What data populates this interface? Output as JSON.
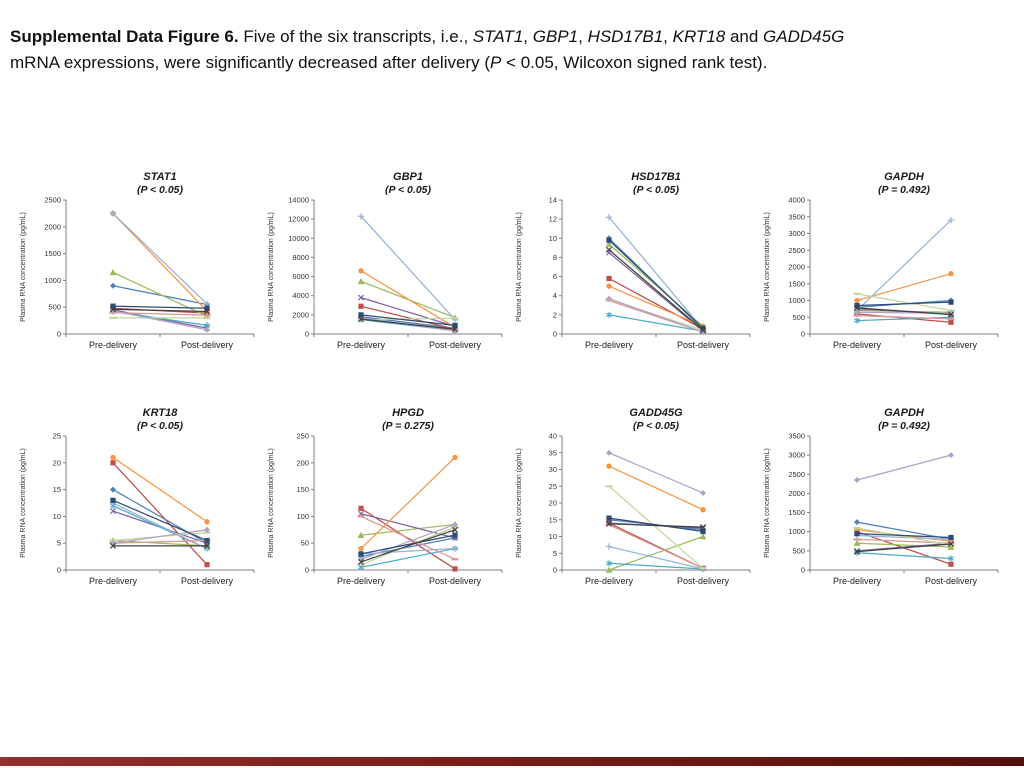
{
  "caption": {
    "segments": [
      {
        "text": "Supplemental Data Figure 6. ",
        "bold": true
      },
      {
        "text": "Five of the six transcripts, i.e., "
      },
      {
        "text": "STAT1",
        "italic": true
      },
      {
        "text": ", "
      },
      {
        "text": "GBP1",
        "italic": true
      },
      {
        "text": ", "
      },
      {
        "text": "HSD17B1",
        "italic": true
      },
      {
        "text": ", "
      },
      {
        "text": "KRT18",
        "italic": true
      },
      {
        "text": " and "
      },
      {
        "text": "GADD45G",
        "italic": true
      },
      {
        "text": "mRNA expressions, were significantly decreased after delivery ("
      },
      {
        "text": "P",
        "italic": true
      },
      {
        "text": " < 0.05, Wilcoxon signed rank test)."
      }
    ]
  },
  "colors": {
    "footer_bar": "#7a1f16"
  },
  "chart_data": [
    {
      "type": "line",
      "title": "STAT1",
      "subtitle": "(P < 0.05)",
      "ylabel": "Plasma RNA concentration (pg/mL)",
      "categories": [
        "Pre-delivery",
        "Post-delivery"
      ],
      "ylim": [
        0,
        2500
      ],
      "ytick_step": 500,
      "grid": false,
      "legend": "none",
      "series": [
        {
          "color": "#4F81BD",
          "marker": "diamond",
          "values": [
            900,
            550
          ]
        },
        {
          "color": "#C0504D",
          "marker": "square",
          "values": [
            480,
            390
          ]
        },
        {
          "color": "#9BBB59",
          "marker": "triangle",
          "values": [
            1150,
            330
          ]
        },
        {
          "color": "#8064A2",
          "marker": "x",
          "values": [
            450,
            110
          ]
        },
        {
          "color": "#4BACC6",
          "marker": "asterisk",
          "values": [
            420,
            160
          ]
        },
        {
          "color": "#F79646",
          "marker": "circle",
          "values": [
            2250,
            430
          ]
        },
        {
          "color": "#95B3D7",
          "marker": "plus",
          "values": [
            2250,
            560
          ]
        },
        {
          "color": "#D99694",
          "marker": "dash",
          "values": [
            400,
            350
          ]
        },
        {
          "color": "#C3D69B",
          "marker": "dash",
          "values": [
            300,
            300
          ]
        },
        {
          "color": "#B2A1C7",
          "marker": "diamond",
          "values": [
            430,
            80
          ]
        },
        {
          "color": "#2C4D75",
          "marker": "square",
          "values": [
            520,
            480
          ]
        },
        {
          "color": "#404040",
          "marker": "x",
          "values": [
            460,
            420
          ]
        }
      ]
    },
    {
      "type": "line",
      "title": "GBP1",
      "subtitle": "(P < 0.05)",
      "ylabel": "Plasma RNA concentration (pg/mL)",
      "categories": [
        "Pre-delivery",
        "Post-delivery"
      ],
      "ylim": [
        0,
        14000
      ],
      "ytick_step": 2000,
      "grid": false,
      "legend": "none",
      "series": [
        {
          "color": "#4F81BD",
          "marker": "diamond",
          "values": [
            1800,
            600
          ]
        },
        {
          "color": "#C0504D",
          "marker": "square",
          "values": [
            2900,
            500
          ]
        },
        {
          "color": "#9BBB59",
          "marker": "triangle",
          "values": [
            5500,
            1700
          ]
        },
        {
          "color": "#8064A2",
          "marker": "x",
          "values": [
            3800,
            800
          ]
        },
        {
          "color": "#4BACC6",
          "marker": "asterisk",
          "values": [
            1500,
            350
          ]
        },
        {
          "color": "#F79646",
          "marker": "circle",
          "values": [
            6600,
            700
          ]
        },
        {
          "color": "#95B3D7",
          "marker": "plus",
          "values": [
            12300,
            1500
          ]
        },
        {
          "color": "#D99694",
          "marker": "dash",
          "values": [
            1600,
            450
          ]
        },
        {
          "color": "#C3D69B",
          "marker": "dash",
          "values": [
            1500,
            1650
          ]
        },
        {
          "color": "#B2A1C7",
          "marker": "diamond",
          "values": [
            1700,
            300
          ]
        },
        {
          "color": "#2C4D75",
          "marker": "square",
          "values": [
            2000,
            900
          ]
        },
        {
          "color": "#404040",
          "marker": "x",
          "values": [
            1550,
            500
          ]
        }
      ]
    },
    {
      "type": "line",
      "title": "HSD17B1",
      "subtitle": "(P < 0.05)",
      "ylabel": "Plasma RNA concentration (pg/mL)",
      "categories": [
        "Pre-delivery",
        "Post-delivery"
      ],
      "ylim": [
        0,
        14
      ],
      "ytick_step": 2,
      "grid": false,
      "legend": "none",
      "series": [
        {
          "color": "#4F81BD",
          "marker": "diamond",
          "values": [
            10,
            0.5
          ]
        },
        {
          "color": "#C0504D",
          "marker": "square",
          "values": [
            5.8,
            0.5
          ]
        },
        {
          "color": "#9BBB59",
          "marker": "triangle",
          "values": [
            9.4,
            0.8
          ]
        },
        {
          "color": "#8064A2",
          "marker": "x",
          "values": [
            8.5,
            0.3
          ]
        },
        {
          "color": "#4BACC6",
          "marker": "asterisk",
          "values": [
            2,
            0.3
          ]
        },
        {
          "color": "#F79646",
          "marker": "circle",
          "values": [
            5,
            0.8
          ]
        },
        {
          "color": "#95B3D7",
          "marker": "plus",
          "values": [
            12.2,
            0.5
          ]
        },
        {
          "color": "#D99694",
          "marker": "dash",
          "values": [
            3.5,
            0.2
          ]
        },
        {
          "color": "#C3D69B",
          "marker": "dash",
          "values": [
            3.6,
            0.4
          ]
        },
        {
          "color": "#B2A1C7",
          "marker": "diamond",
          "values": [
            3.7,
            0.2
          ]
        },
        {
          "color": "#2C4D75",
          "marker": "square",
          "values": [
            9.8,
            0.6
          ]
        },
        {
          "color": "#404040",
          "marker": "x",
          "values": [
            8.8,
            0.4
          ]
        }
      ]
    },
    {
      "type": "line",
      "title": "GAPDH",
      "subtitle": "(P = 0.492)",
      "ylabel": "Plasma RNA concentration (pg/mL)",
      "categories": [
        "Pre-delivery",
        "Post-delivery"
      ],
      "ylim": [
        0,
        4000
      ],
      "ytick_step": 500,
      "grid": false,
      "legend": "none",
      "series": [
        {
          "color": "#4F81BD",
          "marker": "diamond",
          "values": [
            800,
            1000
          ]
        },
        {
          "color": "#C0504D",
          "marker": "square",
          "values": [
            600,
            350
          ]
        },
        {
          "color": "#9BBB59",
          "marker": "triangle",
          "values": [
            700,
            650
          ]
        },
        {
          "color": "#8064A2",
          "marker": "x",
          "values": [
            750,
            600
          ]
        },
        {
          "color": "#4BACC6",
          "marker": "asterisk",
          "values": [
            400,
            500
          ]
        },
        {
          "color": "#F79646",
          "marker": "circle",
          "values": [
            1000,
            1800
          ]
        },
        {
          "color": "#95B3D7",
          "marker": "plus",
          "values": [
            700,
            3400
          ]
        },
        {
          "color": "#D99694",
          "marker": "dash",
          "values": [
            550,
            450
          ]
        },
        {
          "color": "#C3D69B",
          "marker": "dash",
          "values": [
            1200,
            700
          ]
        },
        {
          "color": "#B2A1C7",
          "marker": "diamond",
          "values": [
            650,
            620
          ]
        },
        {
          "color": "#2C4D75",
          "marker": "square",
          "values": [
            850,
            950
          ]
        },
        {
          "color": "#404040",
          "marker": "x",
          "values": [
            780,
            580
          ]
        }
      ]
    },
    {
      "type": "line",
      "title": "KRT18",
      "subtitle": "(P < 0.05)",
      "ylabel": "Plasma RNA concentration (pg/mL)",
      "categories": [
        "Pre-delivery",
        "Post-delivery"
      ],
      "ylim": [
        0,
        25
      ],
      "ytick_step": 5,
      "grid": false,
      "legend": "none",
      "series": [
        {
          "color": "#4F81BD",
          "marker": "diamond",
          "values": [
            15,
            5
          ]
        },
        {
          "color": "#C0504D",
          "marker": "square",
          "values": [
            20,
            1
          ]
        },
        {
          "color": "#9BBB59",
          "marker": "triangle",
          "values": [
            5.5,
            4.5
          ]
        },
        {
          "color": "#8064A2",
          "marker": "x",
          "values": [
            11,
            5
          ]
        },
        {
          "color": "#4BACC6",
          "marker": "asterisk",
          "values": [
            12,
            4
          ]
        },
        {
          "color": "#F79646",
          "marker": "circle",
          "values": [
            21,
            9
          ]
        },
        {
          "color": "#95B3D7",
          "marker": "plus",
          "values": [
            12.5,
            4
          ]
        },
        {
          "color": "#D99694",
          "marker": "dash",
          "values": [
            5,
            5.5
          ]
        },
        {
          "color": "#C3D69B",
          "marker": "dash",
          "values": [
            5.5,
            7
          ]
        },
        {
          "color": "#B2A1C7",
          "marker": "diamond",
          "values": [
            5,
            7.5
          ]
        },
        {
          "color": "#2C4D75",
          "marker": "square",
          "values": [
            13,
            5.5
          ]
        },
        {
          "color": "#404040",
          "marker": "x",
          "values": [
            4.5,
            4.5
          ]
        }
      ]
    },
    {
      "type": "line",
      "title": "HPGD",
      "subtitle": "(P = 0.275)",
      "ylabel": "Plasma RNA concentration (pg/mL)",
      "categories": [
        "Pre-delivery",
        "Post-delivery"
      ],
      "ylim": [
        0,
        250
      ],
      "ytick_step": 50,
      "grid": false,
      "legend": "none",
      "series": [
        {
          "color": "#4F81BD",
          "marker": "diamond",
          "values": [
            25,
            60
          ]
        },
        {
          "color": "#C0504D",
          "marker": "square",
          "values": [
            115,
            2
          ]
        },
        {
          "color": "#9BBB59",
          "marker": "triangle",
          "values": [
            65,
            85
          ]
        },
        {
          "color": "#8064A2",
          "marker": "x",
          "values": [
            105,
            60
          ]
        },
        {
          "color": "#4BACC6",
          "marker": "asterisk",
          "values": [
            5,
            40
          ]
        },
        {
          "color": "#F79646",
          "marker": "circle",
          "values": [
            40,
            210
          ]
        },
        {
          "color": "#95B3D7",
          "marker": "plus",
          "values": [
            30,
            40
          ]
        },
        {
          "color": "#D99694",
          "marker": "dash",
          "values": [
            100,
            20
          ]
        },
        {
          "color": "#C3D69B",
          "marker": "dash",
          "values": [
            10,
            80
          ]
        },
        {
          "color": "#B2A1C7",
          "marker": "diamond",
          "values": [
            20,
            85
          ]
        },
        {
          "color": "#2C4D75",
          "marker": "square",
          "values": [
            30,
            65
          ]
        },
        {
          "color": "#404040",
          "marker": "x",
          "values": [
            15,
            75
          ]
        }
      ]
    },
    {
      "type": "line",
      "title": "GADD45G",
      "subtitle": "(P < 0.05)",
      "ylabel": "Plasma RNA concentration (pg/mL)",
      "categories": [
        "Pre-delivery",
        "Post-delivery"
      ],
      "ylim": [
        0,
        40
      ],
      "ytick_step": 5,
      "grid": false,
      "legend": "none",
      "series": [
        {
          "color": "#4F81BD",
          "marker": "diamond",
          "values": [
            15,
            12
          ]
        },
        {
          "color": "#C0504D",
          "marker": "square",
          "values": [
            14,
            0.5
          ]
        },
        {
          "color": "#9BBB59",
          "marker": "triangle",
          "values": [
            0,
            10
          ]
        },
        {
          "color": "#8064A2",
          "marker": "x",
          "values": [
            14,
            12.5
          ]
        },
        {
          "color": "#4BACC6",
          "marker": "asterisk",
          "values": [
            2,
            0.3
          ]
        },
        {
          "color": "#F79646",
          "marker": "circle",
          "values": [
            31,
            18
          ]
        },
        {
          "color": "#95B3D7",
          "marker": "plus",
          "values": [
            7,
            0.3
          ]
        },
        {
          "color": "#D99694",
          "marker": "dash",
          "values": [
            13.5,
            0.5
          ]
        },
        {
          "color": "#C3D69B",
          "marker": "dash",
          "values": [
            25,
            0.5
          ]
        },
        {
          "color": "#B2A1C7",
          "marker": "diamond",
          "values": [
            35,
            23
          ]
        },
        {
          "color": "#2C4D75",
          "marker": "square",
          "values": [
            15.5,
            11.5
          ]
        },
        {
          "color": "#404040",
          "marker": "x",
          "values": [
            13.8,
            12.8
          ]
        }
      ]
    },
    {
      "type": "line",
      "title": "GAPDH",
      "subtitle": "(P = 0.492)",
      "ylabel": "Plasma RNA concentration (pg/mL)",
      "categories": [
        "Pre-delivery",
        "Post-delivery"
      ],
      "ylim": [
        0,
        3500
      ],
      "ytick_step": 500,
      "grid": false,
      "legend": "none",
      "series": [
        {
          "color": "#4F81BD",
          "marker": "diamond",
          "values": [
            1250,
            800
          ]
        },
        {
          "color": "#C0504D",
          "marker": "square",
          "values": [
            1000,
            150
          ]
        },
        {
          "color": "#9BBB59",
          "marker": "triangle",
          "values": [
            700,
            600
          ]
        },
        {
          "color": "#8064A2",
          "marker": "x",
          "values": [
            500,
            700
          ]
        },
        {
          "color": "#4BACC6",
          "marker": "asterisk",
          "values": [
            450,
            300
          ]
        },
        {
          "color": "#F79646",
          "marker": "circle",
          "values": [
            1050,
            750
          ]
        },
        {
          "color": "#95B3D7",
          "marker": "plus",
          "values": [
            900,
            800
          ]
        },
        {
          "color": "#D99694",
          "marker": "dash",
          "values": [
            800,
            700
          ]
        },
        {
          "color": "#C3D69B",
          "marker": "dash",
          "values": [
            1100,
            650
          ]
        },
        {
          "color": "#B2A1C7",
          "marker": "diamond",
          "values": [
            2350,
            3000
          ]
        },
        {
          "color": "#2C4D75",
          "marker": "square",
          "values": [
            950,
            850
          ]
        },
        {
          "color": "#404040",
          "marker": "x",
          "values": [
            480,
            680
          ]
        }
      ]
    }
  ]
}
